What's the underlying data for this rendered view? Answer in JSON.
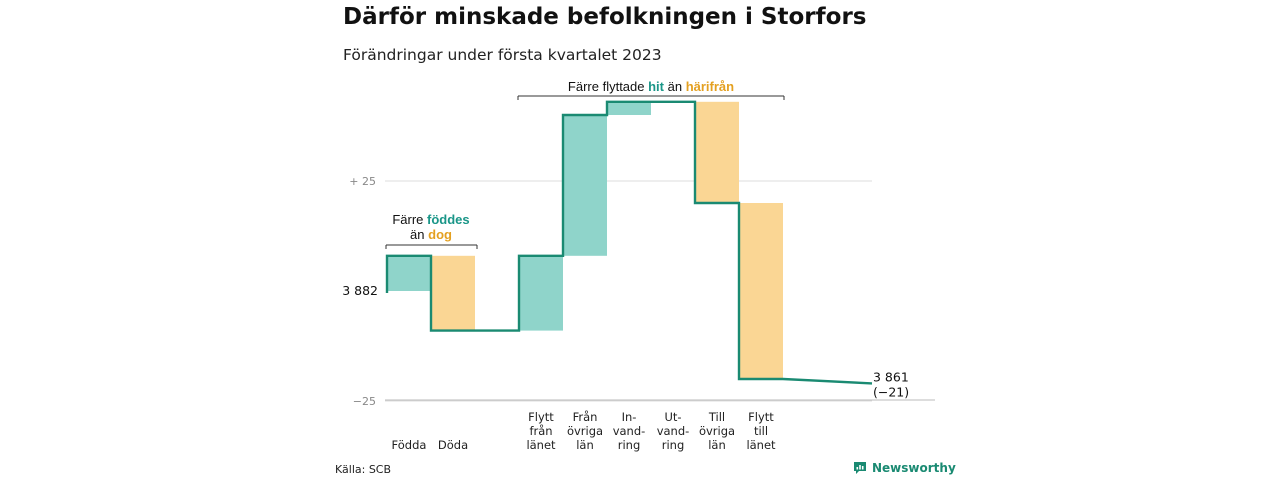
{
  "title": "Därför minskade befolkningen i Storfors",
  "subtitle": "Förändringar under första kvartalet 2023",
  "source": "Källa: SCB",
  "brand": {
    "name": "Newsworthy",
    "logo_icon": "newsworthy-logo-icon"
  },
  "colors": {
    "increase": "#8fd4ca",
    "decrease": "#fad694",
    "line": "#1a8a72",
    "label_increase": "#1a9688",
    "label_decrease": "#e4a020",
    "grid": "#dddddd",
    "axis": "#999999"
  },
  "chart_data": {
    "type": "waterfall",
    "start": {
      "value": 3882,
      "label": "3 882"
    },
    "end": {
      "value": 3861,
      "label": "3 861",
      "change_label": "(−21)"
    },
    "categories": [
      {
        "label": [
          "Födda"
        ],
        "change": 8,
        "kind": "increase"
      },
      {
        "label": [
          "Döda"
        ],
        "change": -17,
        "kind": "decrease"
      },
      {
        "label": [
          "Flytt",
          "från",
          "länet"
        ],
        "change": 17,
        "kind": "increase"
      },
      {
        "label": [
          "Från",
          "övriga",
          "län"
        ],
        "change": 32,
        "kind": "increase"
      },
      {
        "label": [
          "In-",
          "vand-",
          "ring"
        ],
        "change": 3,
        "kind": "increase"
      },
      {
        "label": [
          "Ut-",
          "vand-",
          "ring"
        ],
        "change": 0,
        "kind": "decrease"
      },
      {
        "label": [
          "Till",
          "övriga",
          "län"
        ],
        "change": -23,
        "kind": "decrease"
      },
      {
        "label": [
          "Flytt",
          "till",
          "länet"
        ],
        "change": -40,
        "kind": "decrease"
      }
    ],
    "y_ticks": [
      {
        "offset": 25,
        "label": "+ 25"
      },
      {
        "offset": -25,
        "label": "−25"
      }
    ],
    "ylim_offset": [
      -30,
      45
    ],
    "grid": true,
    "annotations": [
      {
        "group": "births",
        "line1": [
          {
            "text": "Färre ",
            "style": "plain"
          },
          {
            "text": "föddes",
            "style": "increase"
          }
        ],
        "line2": [
          {
            "text": "än ",
            "style": "plain"
          },
          {
            "text": "dog",
            "style": "decrease"
          }
        ]
      },
      {
        "group": "migration",
        "line1": [
          {
            "text": "Färre flyttade ",
            "style": "plain"
          },
          {
            "text": "hit",
            "style": "increase"
          },
          {
            "text": " än ",
            "style": "plain"
          },
          {
            "text": "härifrån",
            "style": "decrease"
          }
        ]
      }
    ]
  }
}
